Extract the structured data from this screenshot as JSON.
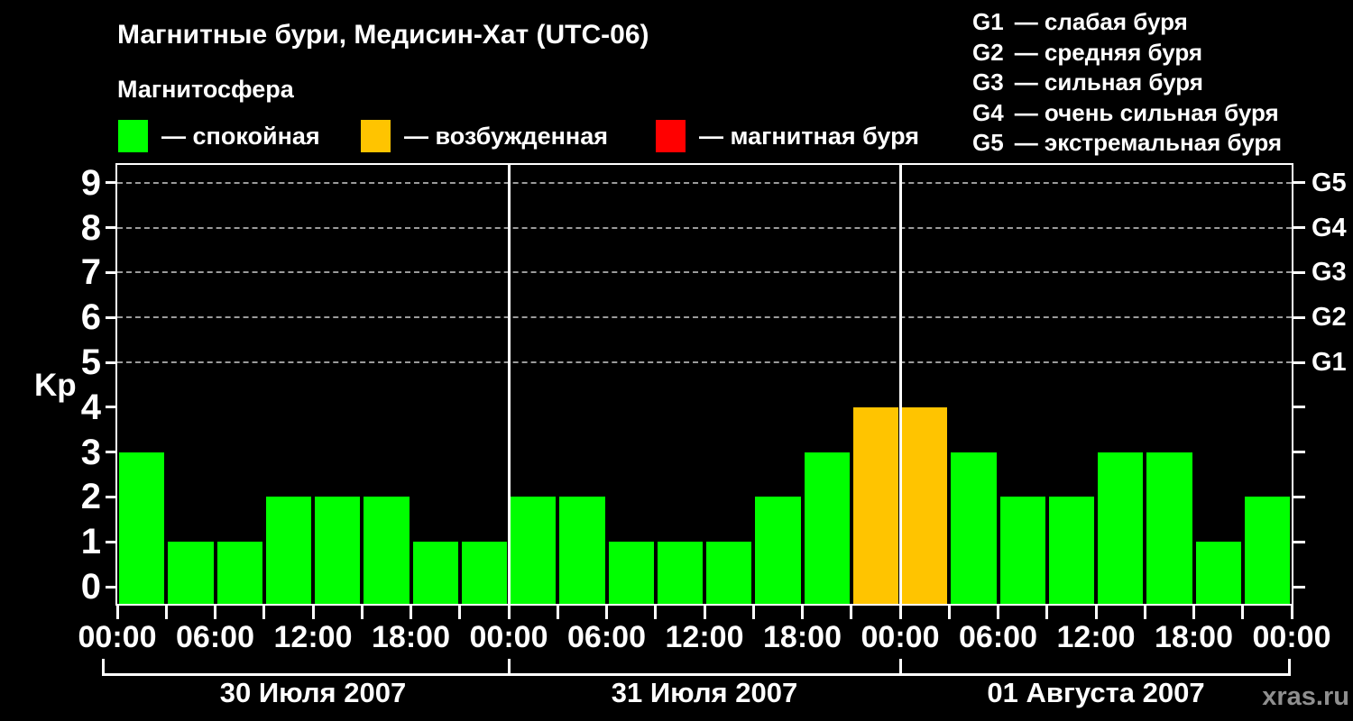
{
  "title": "Магнитные бури, Медисин-Хат (UTC-06)",
  "subtitle": "Магнитосфера",
  "watermark": "xras.ru",
  "legend": {
    "items": [
      {
        "name": "quiet",
        "label": "— спокойная",
        "color": "#00ff00"
      },
      {
        "name": "excited",
        "label": "— возбужденная",
        "color": "#ffc400"
      },
      {
        "name": "storm",
        "label": "— магнитная буря",
        "color": "#ff0000"
      }
    ]
  },
  "g_legend": {
    "items": [
      {
        "code": "G1",
        "label": "— слабая буря"
      },
      {
        "code": "G2",
        "label": "— средняя буря"
      },
      {
        "code": "G3",
        "label": "— сильная буря"
      },
      {
        "code": "G4",
        "label": "— очень сильная буря"
      },
      {
        "code": "G5",
        "label": "— экстремальная буря"
      }
    ]
  },
  "colors": {
    "background": "#000000",
    "axis": "#ffffff",
    "grid": "#9b9b9b",
    "quiet": "#00ff00",
    "excited": "#ffc400",
    "storm": "#ff0000",
    "watermark": "#8f8f8f"
  },
  "chart_data": {
    "type": "bar",
    "title": "Магнитные бури, Медисин-Хат (UTC-06)",
    "ylabel": "Kp",
    "ylim": [
      0,
      9
    ],
    "yticks": [
      0,
      1,
      2,
      3,
      4,
      5,
      6,
      7,
      8,
      9
    ],
    "grid_levels_kp": [
      5,
      6,
      7,
      8,
      9
    ],
    "grid": "dashed horizontal at Kp 5-9 only",
    "legend_position": "above chart",
    "bar_interval_hours": 3,
    "x_tick_interval_hours": 3,
    "x_label_interval_hours": 6,
    "x_labels": [
      "00:00",
      "06:00",
      "12:00",
      "18:00",
      "00:00",
      "06:00",
      "12:00",
      "18:00",
      "00:00",
      "06:00",
      "12:00",
      "18:00",
      "00:00"
    ],
    "right_axis": [
      {
        "label": "G1",
        "kp": 5
      },
      {
        "label": "G2",
        "kp": 6
      },
      {
        "label": "G3",
        "kp": 7
      },
      {
        "label": "G4",
        "kp": 8
      },
      {
        "label": "G5",
        "kp": 9
      }
    ],
    "days": [
      {
        "date": "30 Июля 2007",
        "bars": [
          {
            "value": 3,
            "status": "quiet"
          },
          {
            "value": 1,
            "status": "quiet"
          },
          {
            "value": 1,
            "status": "quiet"
          },
          {
            "value": 2,
            "status": "quiet"
          },
          {
            "value": 2,
            "status": "quiet"
          },
          {
            "value": 2,
            "status": "quiet"
          },
          {
            "value": 1,
            "status": "quiet"
          },
          {
            "value": 1,
            "status": "quiet"
          }
        ]
      },
      {
        "date": "31 Июля 2007",
        "bars": [
          {
            "value": 2,
            "status": "quiet"
          },
          {
            "value": 2,
            "status": "quiet"
          },
          {
            "value": 1,
            "status": "quiet"
          },
          {
            "value": 1,
            "status": "quiet"
          },
          {
            "value": 1,
            "status": "quiet"
          },
          {
            "value": 2,
            "status": "quiet"
          },
          {
            "value": 3,
            "status": "quiet"
          },
          {
            "value": 4,
            "status": "excited"
          }
        ]
      },
      {
        "date": "01 Августа 2007",
        "bars": [
          {
            "value": 4,
            "status": "excited"
          },
          {
            "value": 3,
            "status": "quiet"
          },
          {
            "value": 2,
            "status": "quiet"
          },
          {
            "value": 2,
            "status": "quiet"
          },
          {
            "value": 3,
            "status": "quiet"
          },
          {
            "value": 3,
            "status": "quiet"
          },
          {
            "value": 1,
            "status": "quiet"
          },
          {
            "value": 2,
            "status": "quiet"
          }
        ]
      }
    ]
  }
}
